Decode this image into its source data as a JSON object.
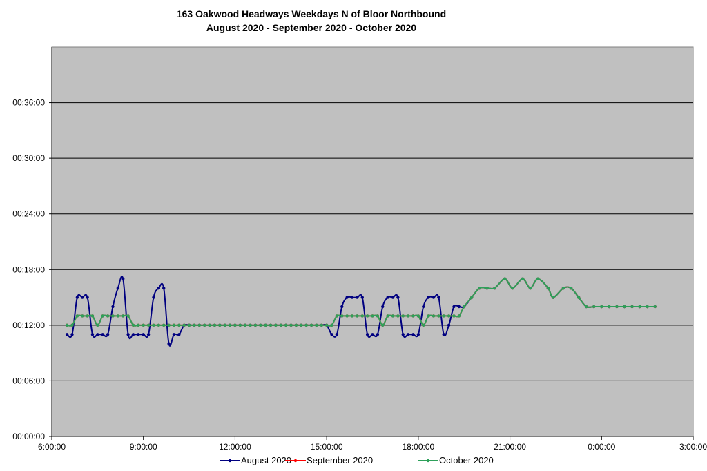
{
  "chart_data": {
    "type": "line",
    "title": "163 Oakwood Headways Weekdays N of Bloor Northbound",
    "subtitle": "August 2020 - September 2020 - October 2020",
    "xlabel": "",
    "ylabel": "",
    "xlim": [
      "6:00:00",
      "3:00:00"
    ],
    "ylim": [
      "00:00:00",
      "00:42:00"
    ],
    "x_ticks": [
      "6:00:00",
      "9:00:00",
      "12:00:00",
      "15:00:00",
      "18:00:00",
      "21:00:00",
      "0:00:00",
      "3:00:00"
    ],
    "y_ticks": [
      "00:00:00",
      "00:06:00",
      "00:12:00",
      "00:18:00",
      "00:24:00",
      "00:30:00",
      "00:36:00"
    ],
    "grid": "horizontal",
    "legend_position": "bottom",
    "smoothed": true,
    "plot_background": "#C0C0C0",
    "x": [
      "6:30",
      "6:40",
      "6:50",
      "7:00",
      "7:10",
      "7:20",
      "7:30",
      "7:40",
      "7:50",
      "8:00",
      "8:10",
      "8:20",
      "8:30",
      "8:40",
      "8:50",
      "9:00",
      "9:10",
      "9:20",
      "9:30",
      "9:40",
      "9:50",
      "10:00",
      "10:10",
      "10:20",
      "10:30",
      "10:40",
      "10:50",
      "11:00",
      "11:10",
      "11:20",
      "11:30",
      "11:40",
      "11:50",
      "12:00",
      "12:10",
      "12:20",
      "12:30",
      "12:40",
      "12:50",
      "13:00",
      "13:10",
      "13:20",
      "13:30",
      "13:40",
      "13:50",
      "14:00",
      "14:10",
      "14:20",
      "14:30",
      "14:40",
      "14:50",
      "15:00",
      "15:10",
      "15:20",
      "15:30",
      "15:40",
      "15:50",
      "16:00",
      "16:10",
      "16:20",
      "16:30",
      "16:40",
      "16:50",
      "17:00",
      "17:10",
      "17:20",
      "17:30",
      "17:40",
      "17:50",
      "18:00",
      "18:10",
      "18:20",
      "18:30",
      "18:40",
      "18:50",
      "19:00",
      "19:10",
      "19:20",
      "19:30",
      "19:45",
      "20:00",
      "20:15",
      "20:30",
      "20:50",
      "21:05",
      "21:25",
      "21:40",
      "21:55",
      "22:15",
      "22:25",
      "22:45",
      "23:00",
      "23:15",
      "23:30",
      "23:45",
      "0:00",
      "0:15",
      "0:30",
      "0:45",
      "1:00",
      "1:15",
      "1:30",
      "1:45"
    ],
    "series": [
      {
        "name": "August 2020",
        "color": "#000080",
        "values": [
          "00:11:00",
          "00:11:00",
          "00:15:00",
          "00:15:00",
          "00:15:00",
          "00:11:00",
          "00:11:00",
          "00:11:00",
          "00:11:00",
          "00:14:00",
          "00:16:00",
          "00:17:00",
          "00:11:00",
          "00:11:00",
          "00:11:00",
          "00:11:00",
          "00:11:00",
          "00:15:00",
          "00:16:00",
          "00:16:00",
          "00:10:00",
          "00:11:00",
          "00:11:00",
          "00:12:00",
          "00:12:00",
          "00:12:00",
          "00:12:00",
          "00:12:00",
          "00:12:00",
          "00:12:00",
          "00:12:00",
          "00:12:00",
          "00:12:00",
          "00:12:00",
          "00:12:00",
          "00:12:00",
          "00:12:00",
          "00:12:00",
          "00:12:00",
          "00:12:00",
          "00:12:00",
          "00:12:00",
          "00:12:00",
          "00:12:00",
          "00:12:00",
          "00:12:00",
          "00:12:00",
          "00:12:00",
          "00:12:00",
          "00:12:00",
          "00:12:00",
          "00:12:00",
          "00:11:00",
          "00:11:00",
          "00:14:00",
          "00:15:00",
          "00:15:00",
          "00:15:00",
          "00:15:00",
          "00:11:00",
          "00:11:00",
          "00:11:00",
          "00:14:00",
          "00:15:00",
          "00:15:00",
          "00:15:00",
          "00:11:00",
          "00:11:00",
          "00:11:00",
          "00:11:00",
          "00:14:00",
          "00:15:00",
          "00:15:00",
          "00:15:00",
          "00:11:00",
          "00:12:00",
          "00:14:00",
          "00:14:00",
          "00:14:00",
          "00:15:00",
          "00:16:00",
          "00:16:00",
          "00:16:00",
          "00:17:00",
          "00:16:00",
          "00:17:00",
          "00:16:00",
          "00:17:00",
          "00:16:00",
          "00:15:00",
          "00:16:00",
          "00:16:00",
          "00:15:00",
          "00:14:00",
          "00:14:00",
          "00:14:00",
          "00:14:00",
          "00:14:00",
          "00:14:00",
          "00:14:00",
          "00:14:00",
          "00:14:00",
          "00:14:00"
        ]
      },
      {
        "name": "September 2020",
        "color": "#FF0000",
        "values": [
          "00:12:00",
          "00:12:00",
          "00:13:00",
          "00:13:00",
          "00:13:00",
          "00:13:00",
          "00:12:00",
          "00:13:00",
          "00:13:00",
          "00:13:00",
          "00:13:00",
          "00:13:00",
          "00:13:00",
          "00:12:00",
          "00:12:00",
          "00:12:00",
          "00:12:00",
          "00:12:00",
          "00:12:00",
          "00:12:00",
          "00:12:00",
          "00:12:00",
          "00:12:00",
          "00:12:00",
          "00:12:00",
          "00:12:00",
          "00:12:00",
          "00:12:00",
          "00:12:00",
          "00:12:00",
          "00:12:00",
          "00:12:00",
          "00:12:00",
          "00:12:00",
          "00:12:00",
          "00:12:00",
          "00:12:00",
          "00:12:00",
          "00:12:00",
          "00:12:00",
          "00:12:00",
          "00:12:00",
          "00:12:00",
          "00:12:00",
          "00:12:00",
          "00:12:00",
          "00:12:00",
          "00:12:00",
          "00:12:00",
          "00:12:00",
          "00:12:00",
          "00:12:00",
          "00:12:00",
          "00:13:00",
          "00:13:00",
          "00:13:00",
          "00:13:00",
          "00:13:00",
          "00:13:00",
          "00:13:00",
          "00:13:00",
          "00:13:00",
          "00:12:00",
          "00:13:00",
          "00:13:00",
          "00:13:00",
          "00:13:00",
          "00:13:00",
          "00:13:00",
          "00:13:00",
          "00:12:00",
          "00:13:00",
          "00:13:00",
          "00:13:00",
          "00:13:00",
          "00:13:00",
          "00:13:00",
          "00:13:00",
          "00:14:00",
          "00:15:00",
          "00:16:00",
          "00:16:00",
          "00:16:00",
          "00:17:00",
          "00:16:00",
          "00:17:00",
          "00:16:00",
          "00:17:00",
          "00:16:00",
          "00:15:00",
          "00:16:00",
          "00:16:00",
          "00:15:00",
          "00:14:00",
          "00:14:00",
          "00:14:00",
          "00:14:00",
          "00:14:00",
          "00:14:00",
          "00:14:00",
          "00:14:00",
          "00:14:00",
          "00:14:00"
        ]
      },
      {
        "name": "October 2020",
        "color": "#2EA05A",
        "values": [
          "00:12:00",
          "00:12:00",
          "00:13:00",
          "00:13:00",
          "00:13:00",
          "00:13:00",
          "00:12:00",
          "00:13:00",
          "00:13:00",
          "00:13:00",
          "00:13:00",
          "00:13:00",
          "00:13:00",
          "00:12:00",
          "00:12:00",
          "00:12:00",
          "00:12:00",
          "00:12:00",
          "00:12:00",
          "00:12:00",
          "00:12:00",
          "00:12:00",
          "00:12:00",
          "00:12:00",
          "00:12:00",
          "00:12:00",
          "00:12:00",
          "00:12:00",
          "00:12:00",
          "00:12:00",
          "00:12:00",
          "00:12:00",
          "00:12:00",
          "00:12:00",
          "00:12:00",
          "00:12:00",
          "00:12:00",
          "00:12:00",
          "00:12:00",
          "00:12:00",
          "00:12:00",
          "00:12:00",
          "00:12:00",
          "00:12:00",
          "00:12:00",
          "00:12:00",
          "00:12:00",
          "00:12:00",
          "00:12:00",
          "00:12:00",
          "00:12:00",
          "00:12:00",
          "00:12:00",
          "00:13:00",
          "00:13:00",
          "00:13:00",
          "00:13:00",
          "00:13:00",
          "00:13:00",
          "00:13:00",
          "00:13:00",
          "00:13:00",
          "00:12:00",
          "00:13:00",
          "00:13:00",
          "00:13:00",
          "00:13:00",
          "00:13:00",
          "00:13:00",
          "00:13:00",
          "00:12:00",
          "00:13:00",
          "00:13:00",
          "00:13:00",
          "00:13:00",
          "00:13:00",
          "00:13:00",
          "00:13:00",
          "00:14:00",
          "00:15:00",
          "00:16:00",
          "00:16:00",
          "00:16:00",
          "00:17:00",
          "00:16:00",
          "00:17:00",
          "00:16:00",
          "00:17:00",
          "00:16:00",
          "00:15:00",
          "00:16:00",
          "00:16:00",
          "00:15:00",
          "00:14:00",
          "00:14:00",
          "00:14:00",
          "00:14:00",
          "00:14:00",
          "00:14:00",
          "00:14:00",
          "00:14:00",
          "00:14:00",
          "00:14:00"
        ]
      }
    ]
  }
}
